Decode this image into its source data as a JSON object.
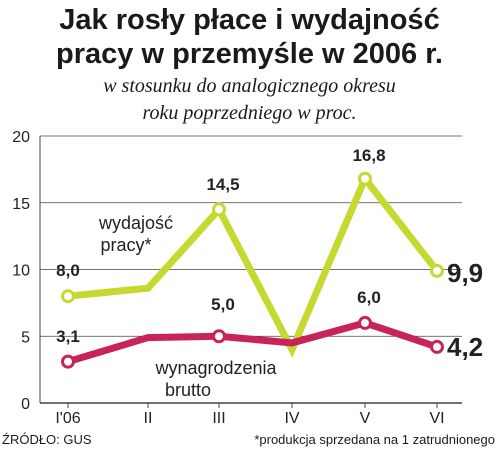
{
  "header": {
    "title_line1": "Jak rosły płace i wydajność",
    "title_line2": "pracy w przemyśle w 2006 r.",
    "subtitle_line1": "w stosunku do analogicznego okresu",
    "subtitle_line2": "roku poprzedniego w proc."
  },
  "footer": {
    "source": "ŹRÓDŁO: GUS",
    "footnote": "*produkcja sprzedana na 1 zatrudnionego"
  },
  "colors": {
    "productivity": "#c6d931",
    "wages": "#c9245a",
    "grid": "#444444",
    "text": "#1a1a1a"
  },
  "chart_data": {
    "type": "line",
    "categories": [
      "I'06",
      "II",
      "III",
      "IV",
      "V",
      "VI"
    ],
    "ylim": [
      0,
      20
    ],
    "yticks": [
      0,
      5,
      10,
      15,
      20
    ],
    "grid": true,
    "series": [
      {
        "name_lines": [
          "wydajość",
          "pracy*"
        ],
        "values": [
          8.0,
          8.6,
          14.5,
          4.0,
          16.8,
          9.9
        ],
        "labels": [
          "8,0",
          null,
          "14,5",
          null,
          "16,8",
          "9,9"
        ],
        "color_key": "productivity"
      },
      {
        "name_lines": [
          "wynagrodzenia",
          "brutto"
        ],
        "values": [
          3.1,
          4.9,
          5.0,
          4.5,
          6.0,
          4.2
        ],
        "labels": [
          "3,1",
          null,
          "5,0",
          null,
          "6,0",
          "4,2"
        ],
        "color_key": "wages"
      }
    ]
  }
}
